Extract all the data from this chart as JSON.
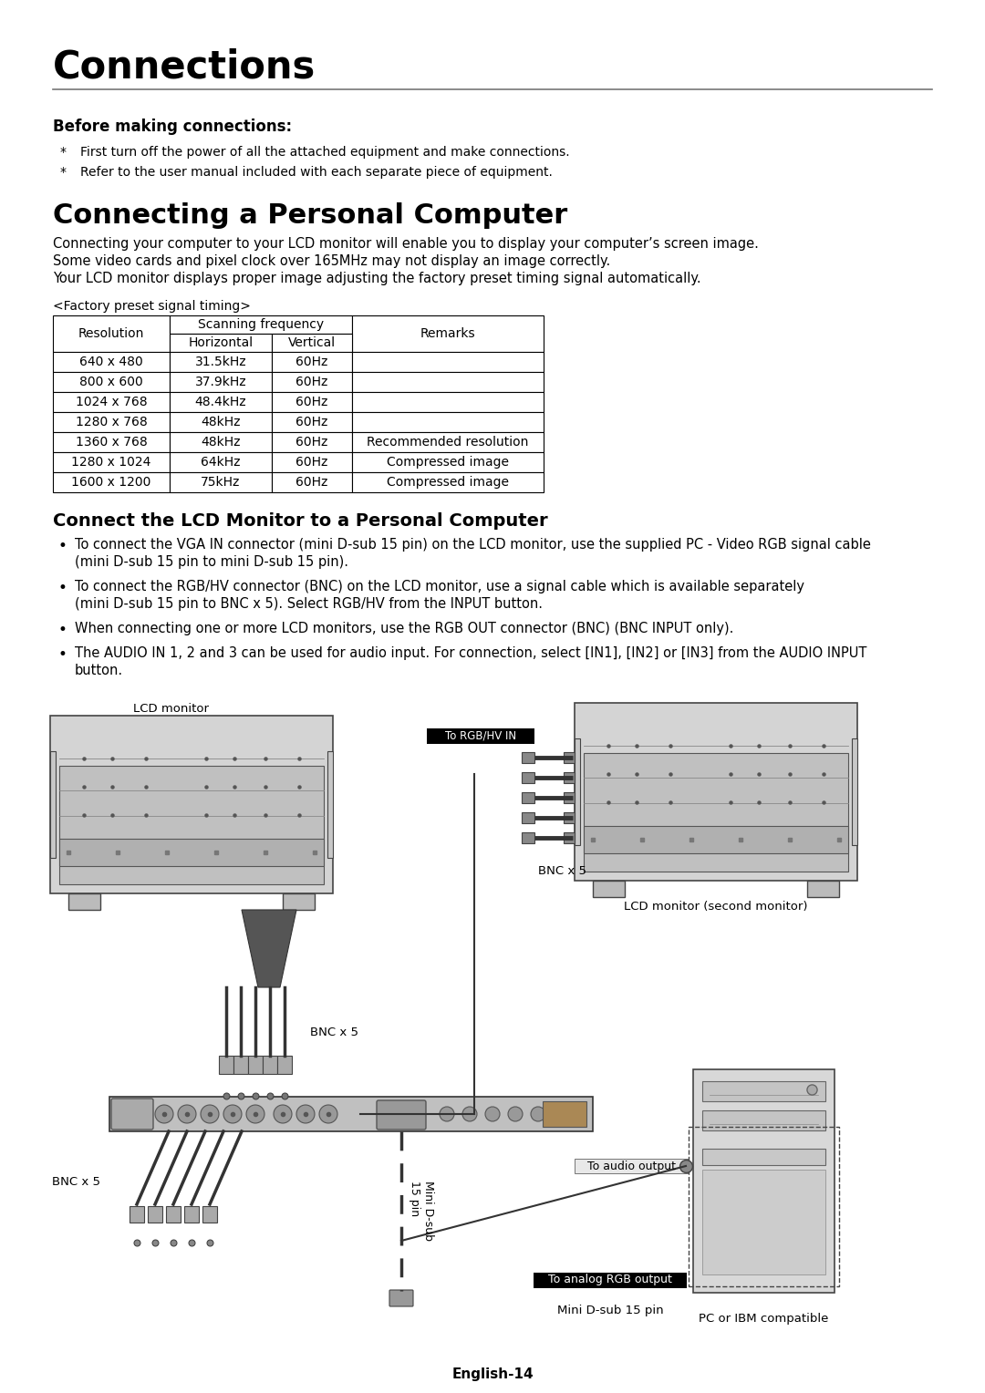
{
  "title": "Connections",
  "section1_title": "Before making connections:",
  "section1_bullets": [
    "First turn off the power of all the attached equipment and make connections.",
    "Refer to the user manual included with each separate piece of equipment."
  ],
  "section2_title": "Connecting a Personal Computer",
  "section2_body": [
    "Connecting your computer to your LCD monitor will enable you to display your computer’s screen image.",
    "Some video cards and pixel clock over 165MHz may not display an image correctly.",
    "Your LCD monitor displays proper image adjusting the factory preset timing signal automatically."
  ],
  "table_caption": "<Factory preset signal timing>",
  "table_rows": [
    [
      "640 x 480",
      "31.5kHz",
      "60Hz",
      ""
    ],
    [
      "800 x 600",
      "37.9kHz",
      "60Hz",
      ""
    ],
    [
      "1024 x 768",
      "48.4kHz",
      "60Hz",
      ""
    ],
    [
      "1280 x 768",
      "48kHz",
      "60Hz",
      ""
    ],
    [
      "1360 x 768",
      "48kHz",
      "60Hz",
      "Recommended resolution"
    ],
    [
      "1280 x 1024",
      "64kHz",
      "60Hz",
      "Compressed image"
    ],
    [
      "1600 x 1200",
      "75kHz",
      "60Hz",
      "Compressed image"
    ]
  ],
  "section3_title": "Connect the LCD Monitor to a Personal Computer",
  "section3_bullets": [
    "To connect the VGA IN connector (mini D-sub 15 pin) on the LCD monitor, use the supplied PC - Video RGB signal cable\n(mini D-sub 15 pin to mini D-sub 15 pin).",
    "To connect the RGB/HV connector (BNC) on the LCD monitor, use a signal cable which is available separately\n(mini D-sub 15 pin to BNC x 5). Select RGB/HV from the INPUT button.",
    "When connecting one or more LCD monitors, use the RGB OUT connector (BNC) (BNC INPUT only).",
    "The AUDIO IN 1, 2 and 3 can be used for audio input. For connection, select [IN1], [IN2] or [IN3] from the AUDIO INPUT\nbutton."
  ],
  "footer": "English-14",
  "bg_color": "#ffffff",
  "text_color": "#000000"
}
